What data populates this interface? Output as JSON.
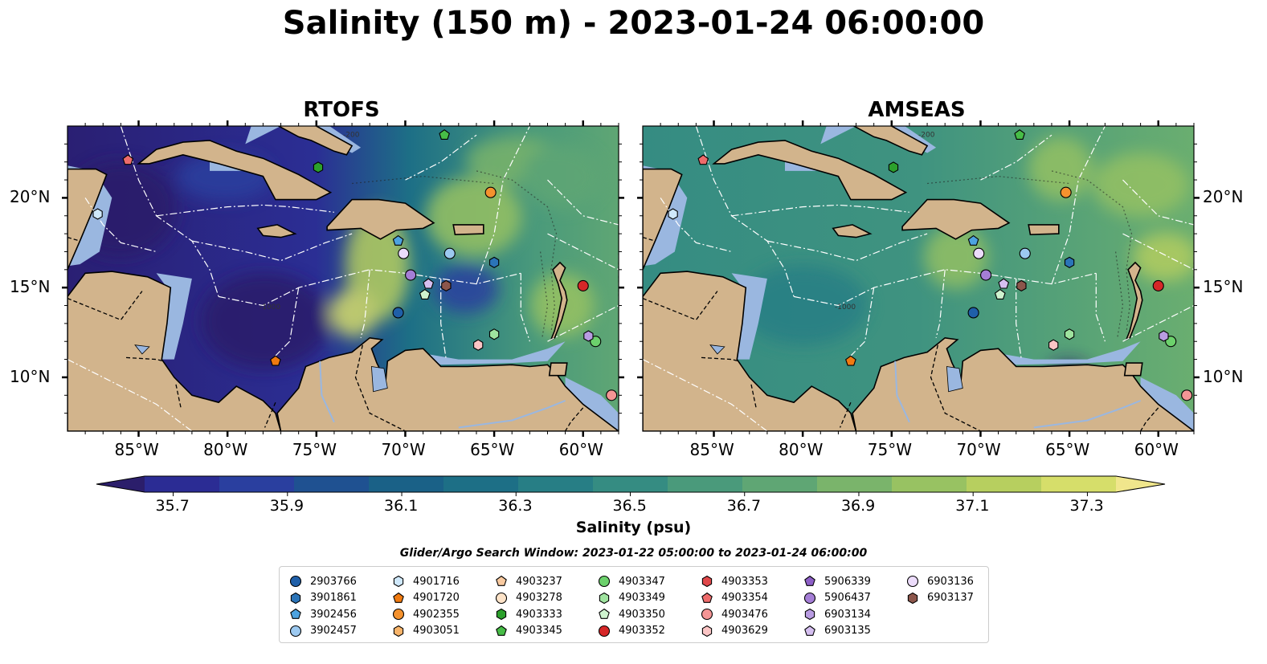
{
  "title": "Salinity (150 m) - 2023-01-24 06:00:00",
  "panels": [
    {
      "title": "RTOFS"
    },
    {
      "title": "AMSEAS"
    }
  ],
  "map": {
    "lon_range": [
      -89,
      -58
    ],
    "lat_range": [
      7,
      24
    ],
    "lon_ticks": [
      "85°W",
      "80°W",
      "75°W",
      "70°W",
      "65°W",
      "60°W"
    ],
    "lat_ticks": [
      "20°N",
      "15°N",
      "10°N"
    ],
    "contour_labels": [
      "-200",
      "-1000"
    ],
    "colors": {
      "land": "#d2b48c",
      "shelf": "#9ab7e0",
      "eez_lines": "#ffffff"
    }
  },
  "colorbar": {
    "title": "Salinity (psu)",
    "min": 35.6,
    "max": 37.4,
    "tick_labels": [
      "35.7",
      "35.9",
      "36.1",
      "36.3",
      "36.5",
      "36.7",
      "36.9",
      "37.1",
      "37.3"
    ],
    "colors": [
      "#2b1e6b",
      "#2b2c94",
      "#2a3f9f",
      "#1f5191",
      "#1a6187",
      "#1d6f86",
      "#277e85",
      "#358c82",
      "#4a9a7b",
      "#5fa674",
      "#7ab46b",
      "#98c262",
      "#b7cf5f",
      "#d6de6a",
      "#f0e68c"
    ]
  },
  "search_window": "Glider/Argo Search Window: 2023-01-22 05:00:00 to 2023-01-24 06:00:00",
  "platforms": [
    {
      "id": "2903766",
      "marker": "circle",
      "color": "#1f5fa8",
      "lon": -70.4,
      "lat": 13.6
    },
    {
      "id": "3901861",
      "marker": "hexagon",
      "color": "#2b74b8",
      "lon": -65.0,
      "lat": 16.4
    },
    {
      "id": "3902456",
      "marker": "pentagon",
      "color": "#4da3e0",
      "lon": -70.4,
      "lat": 17.6
    },
    {
      "id": "3902457",
      "marker": "circle",
      "color": "#9cc9f0",
      "lon": -67.5,
      "lat": 16.9
    },
    {
      "id": "4901716",
      "marker": "hexagon",
      "color": "#cfe8fb",
      "lon": -87.3,
      "lat": 19.1
    },
    {
      "id": "4901720",
      "marker": "pentagon",
      "color": "#f07a10",
      "lon": -77.3,
      "lat": 10.9
    },
    {
      "id": "4902355",
      "marker": "circle",
      "color": "#f5922e",
      "lon": -65.2,
      "lat": 20.3
    },
    {
      "id": "4903051",
      "marker": "hexagon",
      "color": "#f8b46a",
      "lon": 0,
      "lat": 0,
      "hidden": true
    },
    {
      "id": "4903237",
      "marker": "pentagon",
      "color": "#f9caa0",
      "lon": 0,
      "lat": 0,
      "hidden": true
    },
    {
      "id": "4903278",
      "marker": "circle",
      "color": "#fde3c8",
      "lon": 0,
      "lat": 0,
      "hidden": true
    },
    {
      "id": "4903333",
      "marker": "hexagon",
      "color": "#2ca02c",
      "lon": -74.9,
      "lat": 21.7
    },
    {
      "id": "4903345",
      "marker": "pentagon",
      "color": "#47bd47",
      "lon": -67.8,
      "lat": 23.5
    },
    {
      "id": "4903347",
      "marker": "circle",
      "color": "#6cd16c",
      "lon": -59.3,
      "lat": 12.0
    },
    {
      "id": "4903349",
      "marker": "hexagon",
      "color": "#9fe39f",
      "lon": -65.0,
      "lat": 12.4
    },
    {
      "id": "4903350",
      "marker": "pentagon",
      "color": "#cff3cf",
      "lon": -68.9,
      "lat": 14.6
    },
    {
      "id": "4903352",
      "marker": "circle",
      "color": "#d62728",
      "lon": -60.0,
      "lat": 15.1
    },
    {
      "id": "4903353",
      "marker": "hexagon",
      "color": "#e0484a",
      "lon": 0,
      "lat": 0,
      "hidden": true
    },
    {
      "id": "4903354",
      "marker": "pentagon",
      "color": "#ee6b6b",
      "lon": -85.6,
      "lat": 22.1
    },
    {
      "id": "4903476",
      "marker": "circle",
      "color": "#f49595",
      "lon": -58.4,
      "lat": 9.0
    },
    {
      "id": "4903629",
      "marker": "hexagon",
      "color": "#fbc5c5",
      "lon": -65.9,
      "lat": 11.8
    },
    {
      "id": "5906339",
      "marker": "pentagon",
      "color": "#8d5fc7",
      "lon": 0,
      "lat": 0,
      "hidden": true
    },
    {
      "id": "5906437",
      "marker": "circle",
      "color": "#a57ed6",
      "lon": -69.7,
      "lat": 15.7
    },
    {
      "id": "6903134",
      "marker": "hexagon",
      "color": "#b99ce2",
      "lon": -59.7,
      "lat": 12.3
    },
    {
      "id": "6903135",
      "marker": "pentagon",
      "color": "#d5bff0",
      "lon": -68.7,
      "lat": 15.2
    },
    {
      "id": "6903136",
      "marker": "circle",
      "color": "#ecdcfb",
      "lon": -70.1,
      "lat": 16.9
    },
    {
      "id": "6903137",
      "marker": "hexagon",
      "color": "#8c564b",
      "lon": -67.7,
      "lat": 15.1
    }
  ]
}
